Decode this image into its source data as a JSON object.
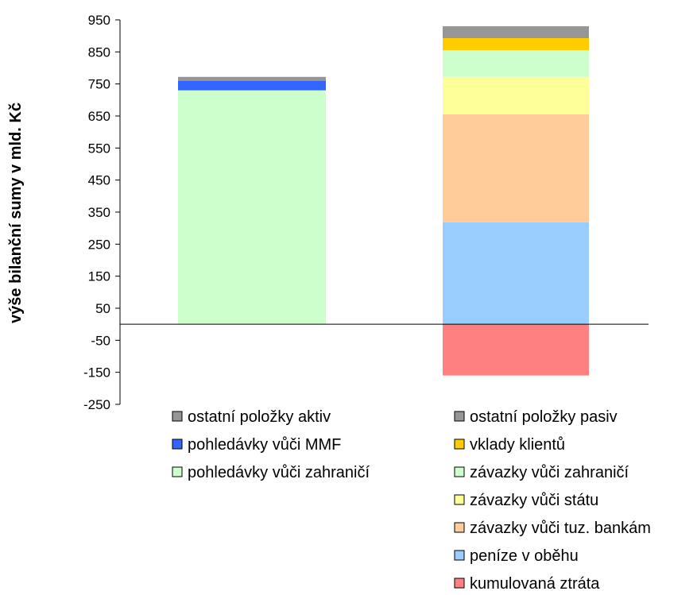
{
  "chart_data": {
    "type": "bar",
    "stacked": true,
    "title": "",
    "xlabel": "",
    "ylabel": "výše bilanční sumy v mld. Kč",
    "ylim": [
      -250,
      950
    ],
    "yticks": [
      950,
      850,
      750,
      650,
      550,
      450,
      350,
      250,
      150,
      50,
      -50,
      -150,
      -250
    ],
    "bars": [
      {
        "legend_side": "left",
        "segments": [
          {
            "name": "pohledávky vůči zahraničí",
            "value": 730,
            "color": "#ccffcc"
          },
          {
            "name": "pohledávky vůči MMF",
            "value": 30,
            "color": "#3366ff"
          },
          {
            "name": "ostatní položky aktiv",
            "value": 12,
            "color": "#969696"
          }
        ]
      },
      {
        "legend_side": "right",
        "segments": [
          {
            "name": "kumulovaná ztráta",
            "value": -160,
            "color": "#ff8080"
          },
          {
            "name": "peníze v oběhu",
            "value": 318,
            "color": "#99ccff"
          },
          {
            "name": "závazky vůči tuz. bankám",
            "value": 337,
            "color": "#ffcc99"
          },
          {
            "name": "závazky vůči státu",
            "value": 117,
            "color": "#ffff99"
          },
          {
            "name": "závazky vůči zahraničí",
            "value": 83,
            "color": "#ccffcc"
          },
          {
            "name": "vklady klientů",
            "value": 38,
            "color": "#ffcc00"
          },
          {
            "name": "ostatní položky pasiv",
            "value": 37,
            "color": "#969696"
          }
        ]
      }
    ],
    "legend_left": [
      "ostatní položky aktiv",
      "pohledávky vůči MMF",
      "pohledávky vůči zahraničí"
    ],
    "legend_right": [
      "ostatní položky pasiv",
      "vklady klientů",
      "závazky vůči zahraničí",
      "závazky vůči státu",
      "závazky vůči tuz. bankám",
      "peníze v oběhu",
      "kumulovaná ztráta"
    ],
    "grid": false,
    "legend_placement": "bottom"
  }
}
